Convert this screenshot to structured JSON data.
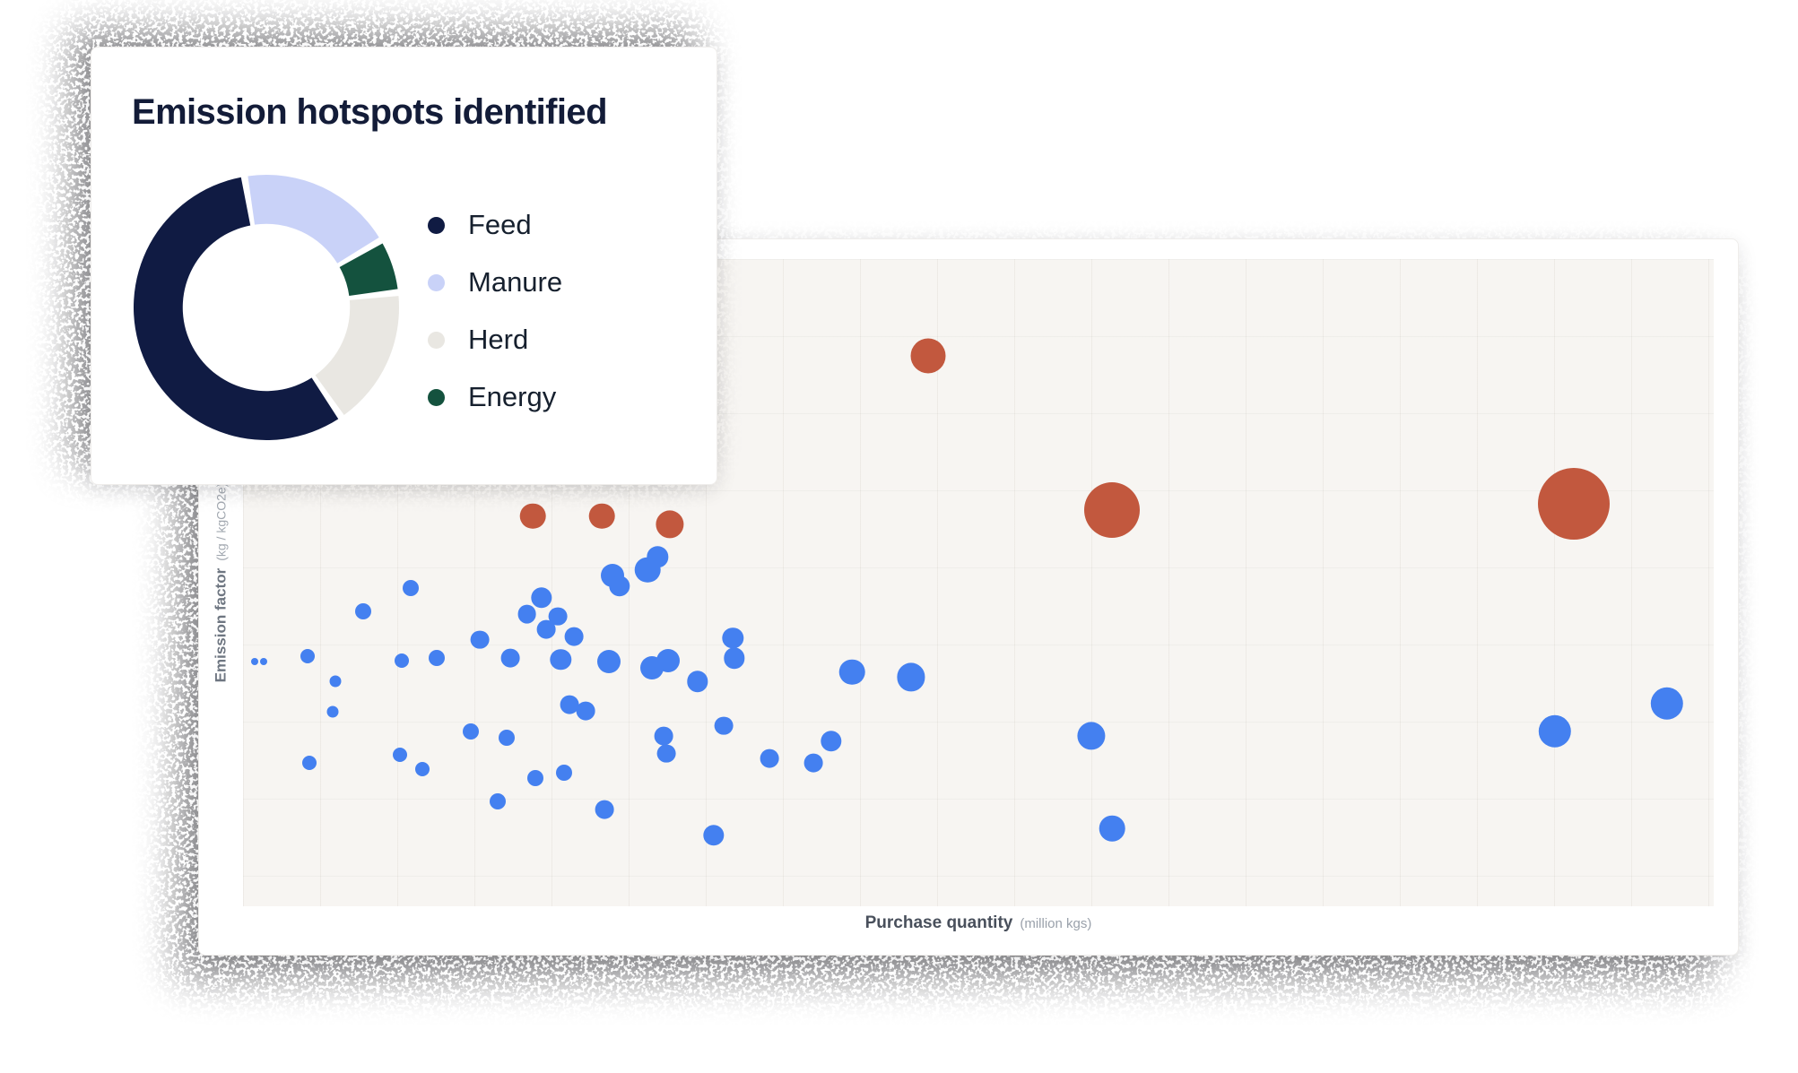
{
  "donut_card": {
    "title": "Emission hotspots identified",
    "legend": [
      {
        "label": "Feed",
        "color": "#101b43"
      },
      {
        "label": "Manure",
        "color": "#c9d2f8"
      },
      {
        "label": "Herd",
        "color": "#e9e7e2"
      },
      {
        "label": "Energy",
        "color": "#14523e"
      }
    ]
  },
  "scatter_card": {
    "x_axis_label": "Purchase quantity",
    "x_axis_unit": "(million kgs)",
    "y_axis_label": "Emission factor",
    "y_axis_unit": "(kg / kgCO2e)"
  },
  "chart_data": [
    {
      "type": "pie",
      "donut": true,
      "title": "Emission hotspots identified",
      "slices": [
        {
          "label": "Feed",
          "value": 58,
          "color": "#101b43"
        },
        {
          "label": "Manure",
          "value": 19,
          "color": "#c9d2f8"
        },
        {
          "label": "Herd",
          "value": 17,
          "color": "#e9e7e2"
        },
        {
          "label": "Energy",
          "value": 6,
          "color": "#14523e"
        }
      ],
      "draw_order": [
        "Manure",
        "Energy",
        "Herd",
        "Feed"
      ],
      "start_angle_deg": -8,
      "gap_deg": 3,
      "inner_radius_ratio": 0.63,
      "legend_position": "right"
    },
    {
      "type": "scatter",
      "xlabel": "Purchase quantity",
      "xlabel_unit": "(million kgs)",
      "ylabel": "Emission factor",
      "ylabel_unit": "(kg / kgCO2e)",
      "ticks_labeled": false,
      "grid": true,
      "point_format": "[x_pct_from_left, y_pct_from_bottom, radius_px]",
      "series": [
        {
          "name": "hotspot",
          "color": "#c2583e",
          "points": [
            [
              46.6,
              85.1,
              19.5
            ],
            [
              19.7,
              60.3,
              14.3
            ],
            [
              24.4,
              60.3,
              14.3
            ],
            [
              29,
              59,
              15.6
            ],
            [
              59.1,
              61.2,
              31
            ],
            [
              90.5,
              62.2,
              40
            ]
          ]
        },
        {
          "name": "supplier",
          "color": "#4480f0",
          "points": [
            [
              0.8,
              37.8,
              4
            ],
            [
              1.4,
              37.8,
              4
            ],
            [
              4.4,
              38.7,
              8
            ],
            [
              6.3,
              34.7,
              6.5
            ],
            [
              6.1,
              30,
              6.5
            ],
            [
              8.2,
              45.5,
              9
            ],
            [
              10.8,
              37.9,
              8
            ],
            [
              11.4,
              49.1,
              9
            ],
            [
              4.5,
              22.1,
              8
            ],
            [
              10.7,
              23.4,
              8
            ],
            [
              12.2,
              21.2,
              8
            ],
            [
              13.2,
              38.3,
              9
            ],
            [
              15.5,
              27,
              9
            ],
            [
              16.1,
              41.2,
              10.4
            ],
            [
              17.3,
              16.2,
              9
            ],
            [
              17.9,
              26.1,
              9
            ],
            [
              18.2,
              38.3,
              10.4
            ],
            [
              19.3,
              45.1,
              10.4
            ],
            [
              19.9,
              19.8,
              9
            ],
            [
              20.3,
              47.7,
              11.7
            ],
            [
              20.6,
              42.8,
              10.4
            ],
            [
              21.4,
              44.8,
              10.4
            ],
            [
              21.6,
              38.1,
              11.7
            ],
            [
              21.8,
              20.7,
              9
            ],
            [
              22.2,
              31.1,
              10.4
            ],
            [
              22.5,
              41.7,
              10.4
            ],
            [
              23.3,
              30.2,
              10.4
            ],
            [
              24.6,
              14.9,
              10.4
            ],
            [
              24.9,
              37.8,
              13
            ],
            [
              25.1,
              51.1,
              13
            ],
            [
              25.6,
              49.5,
              11.7
            ],
            [
              27.5,
              52,
              14.3
            ],
            [
              27.8,
              36.9,
              13
            ],
            [
              28.2,
              54,
              11.7
            ],
            [
              28.6,
              26.3,
              10.4
            ],
            [
              28.8,
              23.6,
              10.4
            ],
            [
              28.9,
              37.9,
              13
            ],
            [
              30.9,
              34.7,
              11.7
            ],
            [
              32,
              11,
              11.7
            ],
            [
              32.7,
              27.9,
              10.4
            ],
            [
              33.3,
              41.4,
              11.7
            ],
            [
              33.4,
              38.3,
              11.7
            ],
            [
              35.8,
              22.8,
              10.4
            ],
            [
              38.8,
              22.1,
              10.4
            ],
            [
              40,
              25.5,
              11.7
            ],
            [
              41.4,
              36.2,
              14.3
            ],
            [
              45.4,
              35.4,
              15.6
            ],
            [
              57.7,
              26.3,
              15.6
            ],
            [
              59.1,
              12,
              14.3
            ],
            [
              89.2,
              27,
              18.2
            ],
            [
              96.8,
              31.3,
              18.2
            ]
          ]
        }
      ]
    }
  ]
}
